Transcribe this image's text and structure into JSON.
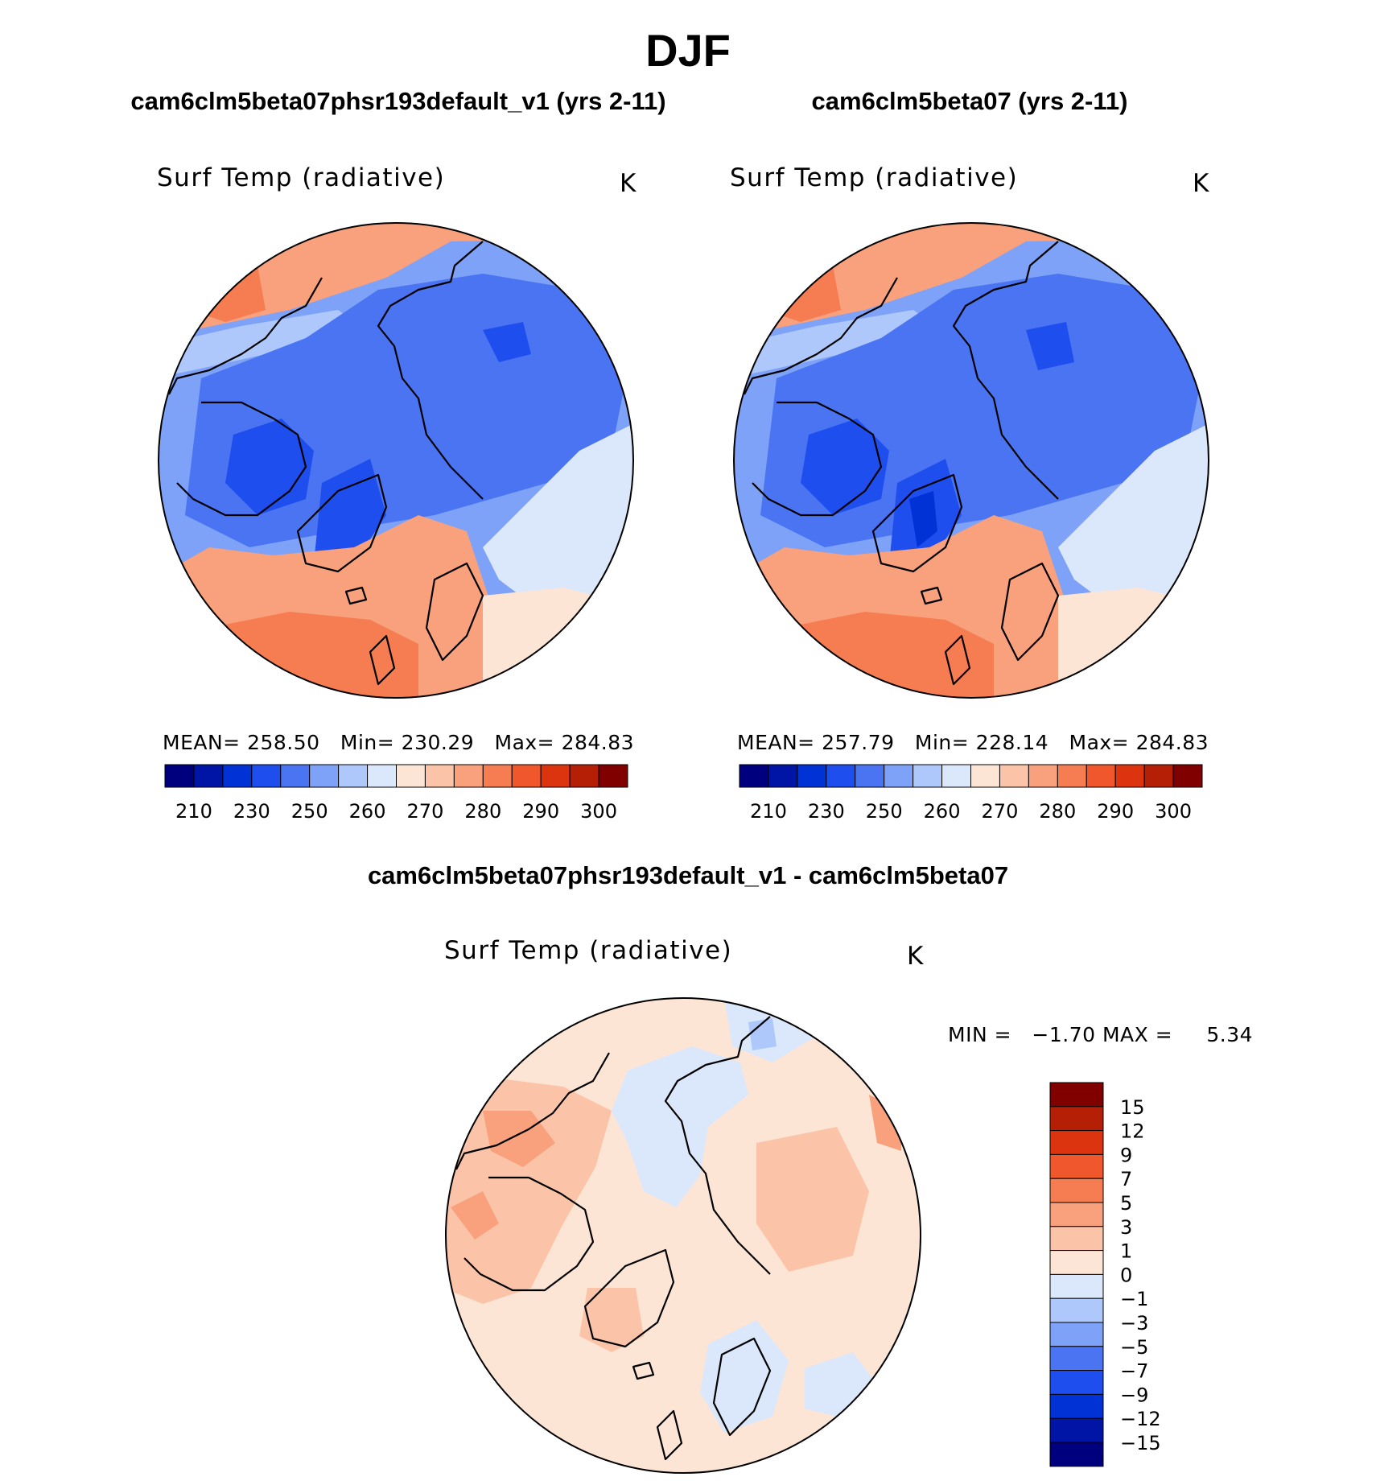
{
  "figure": {
    "season": "DJF",
    "diff_title": "cam6clm5beta07phsr193default_v1 - cam6clm5beta07"
  },
  "chart_data": [
    {
      "type": "heatmap",
      "projection": "north-polar-stereographic",
      "case_title": "cam6clm5beta07phsr193default_v1 (yrs 2-11)",
      "variable": "Surf Temp (radiative)",
      "units": "K",
      "stats": {
        "mean_label": "MEAN=",
        "mean": "258.50",
        "min_label": "Min=",
        "min": "230.29",
        "max_label": "Max=",
        "max": "284.83"
      },
      "colorbar": {
        "orientation": "horizontal",
        "levels": [
          "210",
          "230",
          "250",
          "260",
          "270",
          "280",
          "290",
          "300"
        ],
        "colors": [
          "#00007f",
          "#0014a6",
          "#0032d6",
          "#1f4eef",
          "#4a74f2",
          "#7ea2f7",
          "#afc8fb",
          "#dbe8fb",
          "#fde5d6",
          "#fbc4a8",
          "#f9a07c",
          "#f67c52",
          "#f1572d",
          "#dd3410",
          "#b51f05",
          "#800000"
        ]
      }
    },
    {
      "type": "heatmap",
      "projection": "north-polar-stereographic",
      "case_title": "cam6clm5beta07 (yrs 2-11)",
      "variable": "Surf Temp (radiative)",
      "units": "K",
      "stats": {
        "mean_label": "MEAN=",
        "mean": "257.79",
        "min_label": "Min=",
        "min": "228.14",
        "max_label": "Max=",
        "max": "284.83"
      },
      "colorbar": {
        "orientation": "horizontal",
        "levels": [
          "210",
          "230",
          "250",
          "260",
          "270",
          "280",
          "290",
          "300"
        ],
        "colors": [
          "#00007f",
          "#0014a6",
          "#0032d6",
          "#1f4eef",
          "#4a74f2",
          "#7ea2f7",
          "#afc8fb",
          "#dbe8fb",
          "#fde5d6",
          "#fbc4a8",
          "#f9a07c",
          "#f67c52",
          "#f1572d",
          "#dd3410",
          "#b51f05",
          "#800000"
        ]
      }
    },
    {
      "type": "heatmap",
      "projection": "north-polar-stereographic",
      "case_title": "cam6clm5beta07phsr193default_v1 - cam6clm5beta07",
      "variable": "Surf Temp (radiative)",
      "units": "K",
      "stats": {
        "min_label": "MIN =",
        "min": "−1.70",
        "max_label": "MAX =",
        "max": "5.34"
      },
      "colorbar": {
        "orientation": "vertical",
        "levels": [
          "15",
          "12",
          "9",
          "7",
          "5",
          "3",
          "1",
          "0",
          "−1",
          "−3",
          "−5",
          "−7",
          "−9",
          "−12",
          "−15"
        ],
        "colors_top_to_bottom": [
          "#800000",
          "#b51f05",
          "#dd3410",
          "#f1572d",
          "#f67c52",
          "#f9a07c",
          "#fbc4a8",
          "#fde5d6",
          "#dbe8fb",
          "#afc8fb",
          "#7ea2f7",
          "#4a74f2",
          "#1f4eef",
          "#0032d6",
          "#0014a6",
          "#00007f"
        ]
      }
    }
  ],
  "palette": {
    "warm_light": "#fde5d6",
    "warm_mid": "#fbc4a8",
    "warm": "#f9a07c",
    "warm_strong": "#f67c52",
    "warm_deep": "#f1572d",
    "cool_light": "#dbe8fb",
    "cool_pale": "#afc8fb",
    "cool_mid": "#7ea2f7",
    "cool": "#4a74f2",
    "cool_strong": "#1f4eef",
    "cool_deep": "#0032d6"
  }
}
